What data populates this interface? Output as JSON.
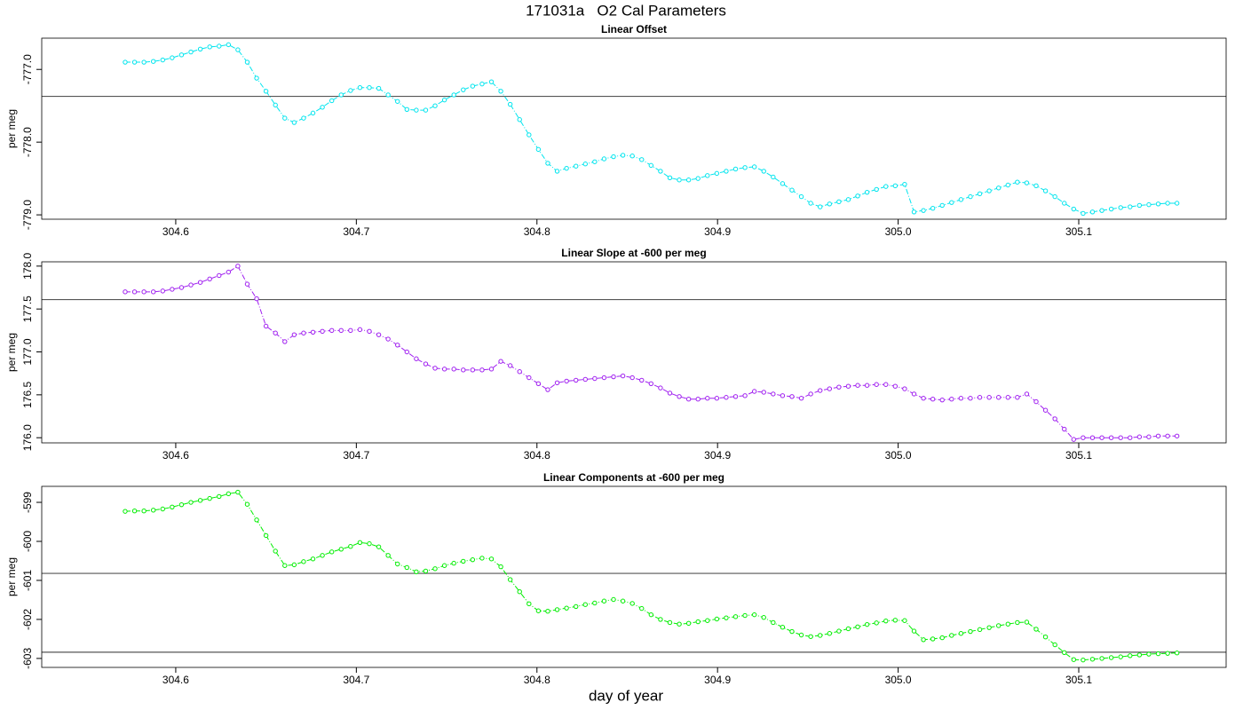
{
  "title": "171031a   O2 Cal Parameters",
  "x_label": "day of year",
  "chart_data": [
    {
      "type": "line",
      "title": "Linear Offset",
      "y_label": "per meg",
      "color": "#00e5ee",
      "xlim": [
        304.5258,
        305.1816
      ],
      "xticks": [
        304.6,
        304.7,
        304.8,
        304.9,
        {
          "value": 305,
          "label": "305.0"
        },
        305.1
      ],
      "ylim": [
        -779.06,
        -776.57
      ],
      "yticks": [
        {
          "value": -777,
          "label": "-777.0"
        },
        {
          "value": -778,
          "label": "-778.0"
        },
        {
          "value": -779,
          "label": "-779.0"
        }
      ],
      "reference_lines": [
        -777.37
      ],
      "x": [
        304.572,
        304.5772,
        304.5824,
        304.5876,
        304.5928,
        304.598,
        304.6032,
        304.6084,
        304.6136,
        304.6188,
        304.624,
        304.6292,
        304.6344,
        304.6396,
        304.6448,
        304.65,
        304.6552,
        304.6604,
        304.6656,
        304.6708,
        304.676,
        304.6812,
        304.6864,
        304.6916,
        304.6968,
        304.702,
        304.7072,
        304.7124,
        304.7176,
        304.7228,
        304.728,
        304.7332,
        304.7384,
        304.7436,
        304.7488,
        304.754,
        304.7592,
        304.7644,
        304.7696,
        304.7748,
        304.78,
        304.7852,
        304.7904,
        304.7956,
        304.8008,
        304.806,
        304.8112,
        304.8164,
        304.8216,
        304.8268,
        304.832,
        304.8372,
        304.8424,
        304.8476,
        304.8528,
        304.858,
        304.8632,
        304.8684,
        304.8736,
        304.8788,
        304.884,
        304.8892,
        304.8944,
        304.8996,
        304.9048,
        304.91,
        304.9152,
        304.9204,
        304.9256,
        304.9308,
        304.936,
        304.9412,
        304.9464,
        304.9516,
        304.9568,
        304.962,
        304.9672,
        304.9724,
        304.9776,
        304.9828,
        304.988,
        304.9932,
        304.9984,
        305.0036,
        305.0088,
        305.014,
        305.0192,
        305.0244,
        305.0296,
        305.0348,
        305.04,
        305.0452,
        305.0504,
        305.0556,
        305.0608,
        305.066,
        305.0712,
        305.0764,
        305.0816,
        305.0868,
        305.092,
        305.0972,
        305.1024,
        305.1076,
        305.1128,
        305.118,
        305.1232,
        305.1284,
        305.1336,
        305.1388,
        305.144,
        305.1492,
        305.1544
      ],
      "values": [
        -776.9,
        -776.9,
        -776.9,
        -776.89,
        -776.87,
        -776.84,
        -776.8,
        -776.76,
        -776.72,
        -776.69,
        -776.68,
        -776.66,
        -776.73,
        -776.9,
        -777.12,
        -777.3,
        -777.49,
        -777.67,
        -777.73,
        -777.67,
        -777.6,
        -777.52,
        -777.43,
        -777.35,
        -777.29,
        -777.25,
        -777.25,
        -777.26,
        -777.35,
        -777.44,
        -777.55,
        -777.56,
        -777.56,
        -777.5,
        -777.42,
        -777.35,
        -777.28,
        -777.23,
        -777.2,
        -777.17,
        -777.3,
        -777.48,
        -777.69,
        -777.9,
        -778.1,
        -778.29,
        -778.4,
        -778.36,
        -778.33,
        -778.3,
        -778.27,
        -778.23,
        -778.2,
        -778.18,
        -778.19,
        -778.24,
        -778.32,
        -778.4,
        -778.49,
        -778.52,
        -778.52,
        -778.5,
        -778.46,
        -778.43,
        -778.4,
        -778.37,
        -778.35,
        -778.34,
        -778.4,
        -778.48,
        -778.57,
        -778.66,
        -778.75,
        -778.84,
        -778.89,
        -778.85,
        -778.82,
        -778.79,
        -778.74,
        -778.69,
        -778.65,
        -778.61,
        -778.6,
        -778.58,
        -778.96,
        -778.94,
        -778.91,
        -778.87,
        -778.83,
        -778.79,
        -778.75,
        -778.71,
        -778.67,
        -778.63,
        -778.59,
        -778.55,
        -778.56,
        -778.6,
        -778.67,
        -778.75,
        -778.84,
        -778.92,
        -778.98,
        -778.96,
        -778.94,
        -778.92,
        -778.9,
        -778.89,
        -778.87,
        -778.86,
        -778.85,
        -778.84,
        -778.84
      ]
    },
    {
      "type": "line",
      "title": "Linear Slope at -600 per meg",
      "y_label": "per meg",
      "color": "#a020f0",
      "xlim": [
        304.5258,
        305.1816
      ],
      "xticks": [
        304.6,
        304.7,
        304.8,
        304.9,
        {
          "value": 305,
          "label": "305.0"
        },
        305.1
      ],
      "ylim": [
        175.94,
        178.05
      ],
      "yticks": [
        {
          "value": 176,
          "label": "176.0"
        },
        176.5,
        {
          "value": 177,
          "label": "177.0"
        },
        177.5,
        {
          "value": 178,
          "label": "178.0"
        }
      ],
      "reference_lines": [
        177.61
      ],
      "x": [
        304.572,
        304.5772,
        304.5824,
        304.5876,
        304.5928,
        304.598,
        304.6032,
        304.6084,
        304.6136,
        304.6188,
        304.624,
        304.6292,
        304.6344,
        304.6396,
        304.6448,
        304.65,
        304.6552,
        304.6604,
        304.6656,
        304.6708,
        304.676,
        304.6812,
        304.6864,
        304.6916,
        304.6968,
        304.702,
        304.7072,
        304.7124,
        304.7176,
        304.7228,
        304.728,
        304.7332,
        304.7384,
        304.7436,
        304.7488,
        304.754,
        304.7592,
        304.7644,
        304.7696,
        304.7748,
        304.78,
        304.7852,
        304.7904,
        304.7956,
        304.8008,
        304.806,
        304.8112,
        304.8164,
        304.8216,
        304.8268,
        304.832,
        304.8372,
        304.8424,
        304.8476,
        304.8528,
        304.858,
        304.8632,
        304.8684,
        304.8736,
        304.8788,
        304.884,
        304.8892,
        304.8944,
        304.8996,
        304.9048,
        304.91,
        304.9152,
        304.9204,
        304.9256,
        304.9308,
        304.936,
        304.9412,
        304.9464,
        304.9516,
        304.9568,
        304.962,
        304.9672,
        304.9724,
        304.9776,
        304.9828,
        304.988,
        304.9932,
        304.9984,
        305.0036,
        305.0088,
        305.014,
        305.0192,
        305.0244,
        305.0296,
        305.0348,
        305.04,
        305.0452,
        305.0504,
        305.0556,
        305.0608,
        305.066,
        305.0712,
        305.0764,
        305.0816,
        305.0868,
        305.092,
        305.0972,
        305.1024,
        305.1076,
        305.1128,
        305.118,
        305.1232,
        305.1284,
        305.1336,
        305.1388,
        305.144,
        305.1492,
        305.1544
      ],
      "values": [
        177.7,
        177.7,
        177.7,
        177.7,
        177.71,
        177.73,
        177.75,
        177.78,
        177.81,
        177.85,
        177.89,
        177.93,
        178.0,
        177.79,
        177.62,
        177.3,
        177.22,
        177.12,
        177.2,
        177.22,
        177.23,
        177.24,
        177.25,
        177.25,
        177.25,
        177.26,
        177.24,
        177.2,
        177.15,
        177.08,
        177.0,
        176.92,
        176.86,
        176.81,
        176.8,
        176.8,
        176.79,
        176.79,
        176.79,
        176.8,
        176.89,
        176.84,
        176.77,
        176.7,
        176.63,
        176.56,
        176.64,
        176.66,
        176.67,
        176.68,
        176.69,
        176.7,
        176.71,
        176.72,
        176.7,
        176.67,
        176.63,
        176.58,
        176.52,
        176.48,
        176.45,
        176.45,
        176.46,
        176.46,
        176.47,
        176.48,
        176.49,
        176.54,
        176.53,
        176.51,
        176.49,
        176.48,
        176.46,
        176.51,
        176.55,
        176.57,
        176.59,
        176.6,
        176.61,
        176.61,
        176.62,
        176.62,
        176.6,
        176.57,
        176.51,
        176.46,
        176.45,
        176.44,
        176.45,
        176.46,
        176.46,
        176.47,
        176.47,
        176.47,
        176.47,
        176.47,
        176.51,
        176.42,
        176.32,
        176.22,
        176.1,
        175.98,
        176.0,
        176.0,
        176.0,
        176.0,
        176.0,
        176.0,
        176.01,
        176.01,
        176.02,
        176.02,
        176.02
      ]
    },
    {
      "type": "line",
      "title": "Linear Components at -600 per meg",
      "y_label": "per meg",
      "color": "#00ee00",
      "xlim": [
        304.5258,
        305.1816
      ],
      "xticks": [
        304.6,
        304.7,
        304.8,
        304.9,
        {
          "value": 305,
          "label": "305.0"
        },
        305.1
      ],
      "ylim": [
        -603.23,
        -598.59
      ],
      "yticks": [
        -603,
        -602,
        -601,
        -600,
        -599
      ],
      "reference_lines": [
        -600.82,
        -602.84
      ],
      "x": [
        304.572,
        304.5772,
        304.5824,
        304.5876,
        304.5928,
        304.598,
        304.6032,
        304.6084,
        304.6136,
        304.6188,
        304.624,
        304.6292,
        304.6344,
        304.6396,
        304.6448,
        304.65,
        304.6552,
        304.6604,
        304.6656,
        304.6708,
        304.676,
        304.6812,
        304.6864,
        304.6916,
        304.6968,
        304.702,
        304.7072,
        304.7124,
        304.7176,
        304.7228,
        304.728,
        304.7332,
        304.7384,
        304.7436,
        304.7488,
        304.754,
        304.7592,
        304.7644,
        304.7696,
        304.7748,
        304.78,
        304.7852,
        304.7904,
        304.7956,
        304.8008,
        304.806,
        304.8112,
        304.8164,
        304.8216,
        304.8268,
        304.832,
        304.8372,
        304.8424,
        304.8476,
        304.8528,
        304.858,
        304.8632,
        304.8684,
        304.8736,
        304.8788,
        304.884,
        304.8892,
        304.8944,
        304.8996,
        304.9048,
        304.91,
        304.9152,
        304.9204,
        304.9256,
        304.9308,
        304.936,
        304.9412,
        304.9464,
        304.9516,
        304.9568,
        304.962,
        304.9672,
        304.9724,
        304.9776,
        304.9828,
        304.988,
        304.9932,
        304.9984,
        305.0036,
        305.0088,
        305.014,
        305.0192,
        305.0244,
        305.0296,
        305.0348,
        305.04,
        305.0452,
        305.0504,
        305.0556,
        305.0608,
        305.066,
        305.0712,
        305.0764,
        305.0816,
        305.0868,
        305.092,
        305.0972,
        305.1024,
        305.1076,
        305.1128,
        305.118,
        305.1232,
        305.1284,
        305.1336,
        305.1388,
        305.144,
        305.1492,
        305.1544
      ],
      "values": [
        -599.23,
        -599.22,
        -599.22,
        -599.2,
        -599.17,
        -599.12,
        -599.06,
        -599.0,
        -598.95,
        -598.9,
        -598.85,
        -598.78,
        -598.74,
        -599.05,
        -599.45,
        -599.85,
        -600.25,
        -600.62,
        -600.6,
        -600.52,
        -600.45,
        -600.36,
        -600.27,
        -600.2,
        -600.13,
        -600.03,
        -600.06,
        -600.14,
        -600.36,
        -600.58,
        -600.67,
        -600.78,
        -600.76,
        -600.7,
        -600.62,
        -600.56,
        -600.51,
        -600.47,
        -600.43,
        -600.45,
        -600.65,
        -600.98,
        -601.29,
        -601.6,
        -601.78,
        -601.79,
        -601.75,
        -601.71,
        -601.67,
        -601.62,
        -601.58,
        -601.53,
        -601.49,
        -601.53,
        -601.59,
        -601.72,
        -601.88,
        -602.0,
        -602.08,
        -602.12,
        -602.1,
        -602.06,
        -602.03,
        -601.99,
        -601.96,
        -601.93,
        -601.9,
        -601.88,
        -601.95,
        -602.08,
        -602.2,
        -602.31,
        -602.4,
        -602.44,
        -602.41,
        -602.36,
        -602.3,
        -602.24,
        -602.19,
        -602.13,
        -602.09,
        -602.04,
        -602.02,
        -602.03,
        -602.3,
        -602.52,
        -602.5,
        -602.47,
        -602.41,
        -602.36,
        -602.31,
        -602.26,
        -602.21,
        -602.16,
        -602.12,
        -602.08,
        -602.07,
        -602.25,
        -602.45,
        -602.65,
        -602.85,
        -603.03,
        -603.04,
        -603.02,
        -603.0,
        -602.98,
        -602.96,
        -602.93,
        -602.91,
        -602.89,
        -602.88,
        -602.87,
        -602.86
      ]
    }
  ]
}
